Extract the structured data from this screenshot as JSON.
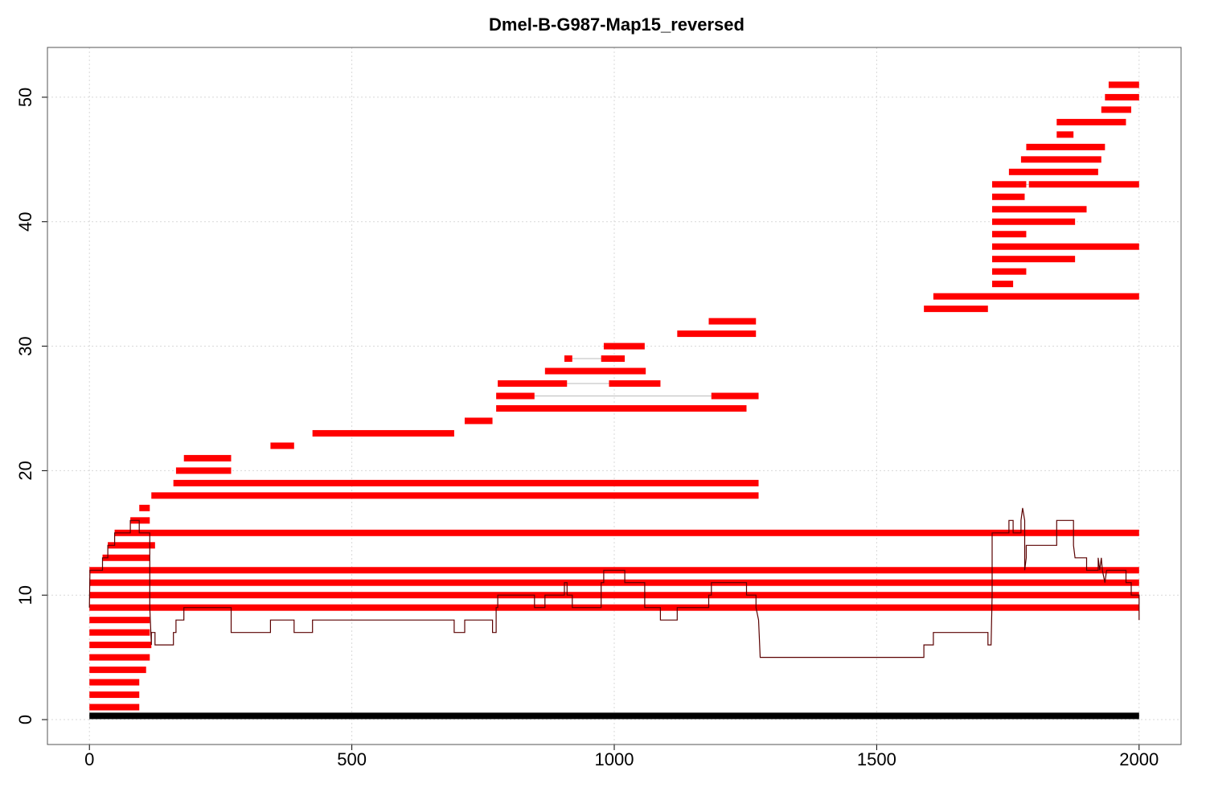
{
  "chart_data": {
    "type": "segment-coverage",
    "title": "Dmel-B-G987-Map15_reversed",
    "xlabel": "",
    "ylabel": "",
    "xlim": [
      -80,
      2080
    ],
    "ylim": [
      -2,
      54
    ],
    "x_ticks": [
      0,
      500,
      1000,
      1500,
      2000
    ],
    "y_ticks": [
      0,
      10,
      20,
      30,
      40,
      50
    ],
    "grid": true,
    "colors": {
      "segments": "#ff0000",
      "reference": "#000000",
      "coverage": "#5a0000",
      "connector": "#bbbbbb"
    },
    "reference": {
      "y": 0.3,
      "x0": 0,
      "x1": 2000
    },
    "segments": [
      {
        "y": 1,
        "pieces": [
          [
            0,
            95
          ]
        ]
      },
      {
        "y": 2,
        "pieces": [
          [
            0,
            95
          ]
        ]
      },
      {
        "y": 3,
        "pieces": [
          [
            0,
            95
          ]
        ]
      },
      {
        "y": 4,
        "pieces": [
          [
            0,
            108
          ]
        ]
      },
      {
        "y": 5,
        "pieces": [
          [
            0,
            115
          ]
        ]
      },
      {
        "y": 6,
        "pieces": [
          [
            0,
            118
          ]
        ]
      },
      {
        "y": 7,
        "pieces": [
          [
            0,
            115
          ]
        ]
      },
      {
        "y": 8,
        "pieces": [
          [
            0,
            115
          ]
        ]
      },
      {
        "y": 9,
        "pieces": [
          [
            0,
            2000
          ]
        ]
      },
      {
        "y": 10,
        "pieces": [
          [
            0,
            2000
          ]
        ]
      },
      {
        "y": 11,
        "pieces": [
          [
            0,
            2000
          ]
        ]
      },
      {
        "y": 12,
        "pieces": [
          [
            0,
            2000
          ]
        ]
      },
      {
        "y": 13,
        "pieces": [
          [
            25,
            115
          ]
        ]
      },
      {
        "y": 14,
        "pieces": [
          [
            35,
            125
          ]
        ]
      },
      {
        "y": 15,
        "pieces": [
          [
            48,
            2000
          ]
        ]
      },
      {
        "y": 16,
        "pieces": [
          [
            78,
            115
          ]
        ]
      },
      {
        "y": 17,
        "pieces": [
          [
            95,
            115
          ]
        ]
      },
      {
        "y": 18,
        "pieces": [
          [
            118,
            1275
          ]
        ]
      },
      {
        "y": 19,
        "pieces": [
          [
            160,
            1275
          ]
        ]
      },
      {
        "y": 20,
        "pieces": [
          [
            165,
            270
          ]
        ]
      },
      {
        "y": 21,
        "pieces": [
          [
            180,
            270
          ]
        ]
      },
      {
        "y": 22,
        "pieces": [
          [
            345,
            390
          ]
        ]
      },
      {
        "y": 23,
        "pieces": [
          [
            425,
            695
          ]
        ]
      },
      {
        "y": 24,
        "pieces": [
          [
            715,
            768
          ]
        ]
      },
      {
        "y": 25,
        "pieces": [
          [
            775,
            1252
          ]
        ]
      },
      {
        "y": 26,
        "pieces": [
          [
            775,
            848
          ],
          [
            1185,
            1275
          ]
        ]
      },
      {
        "y": 27,
        "pieces": [
          [
            778,
            910
          ],
          [
            990,
            1088
          ]
        ]
      },
      {
        "y": 28,
        "pieces": [
          [
            868,
            1060
          ]
        ]
      },
      {
        "y": 29,
        "pieces": [
          [
            905,
            920
          ],
          [
            975,
            1020
          ]
        ]
      },
      {
        "y": 30,
        "pieces": [
          [
            980,
            1058
          ]
        ]
      },
      {
        "y": 31,
        "pieces": [
          [
            1120,
            1270
          ]
        ]
      },
      {
        "y": 32,
        "pieces": [
          [
            1180,
            1270
          ]
        ]
      },
      {
        "y": 33,
        "pieces": [
          [
            1590,
            1712
          ]
        ]
      },
      {
        "y": 34,
        "pieces": [
          [
            1608,
            2000
          ]
        ]
      },
      {
        "y": 35,
        "pieces": [
          [
            1720,
            1760
          ]
        ]
      },
      {
        "y": 36,
        "pieces": [
          [
            1720,
            1785
          ]
        ]
      },
      {
        "y": 37,
        "pieces": [
          [
            1720,
            1878
          ]
        ]
      },
      {
        "y": 38,
        "pieces": [
          [
            1720,
            2000
          ]
        ]
      },
      {
        "y": 39,
        "pieces": [
          [
            1720,
            1785
          ]
        ]
      },
      {
        "y": 40,
        "pieces": [
          [
            1720,
            1878
          ]
        ]
      },
      {
        "y": 41,
        "pieces": [
          [
            1720,
            1900
          ]
        ]
      },
      {
        "y": 42,
        "pieces": [
          [
            1720,
            1782
          ]
        ]
      },
      {
        "y": 43,
        "pieces": [
          [
            1720,
            1785
          ],
          [
            1790,
            2000
          ]
        ]
      },
      {
        "y": 44,
        "pieces": [
          [
            1752,
            1922
          ]
        ]
      },
      {
        "y": 45,
        "pieces": [
          [
            1775,
            1928
          ]
        ]
      },
      {
        "y": 46,
        "pieces": [
          [
            1785,
            1935
          ]
        ]
      },
      {
        "y": 47,
        "pieces": [
          [
            1843,
            1875
          ]
        ]
      },
      {
        "y": 48,
        "pieces": [
          [
            1843,
            1975
          ]
        ]
      },
      {
        "y": 49,
        "pieces": [
          [
            1928,
            1985
          ]
        ]
      },
      {
        "y": 50,
        "pieces": [
          [
            1935,
            2000
          ]
        ]
      },
      {
        "y": 51,
        "pieces": [
          [
            1942,
            2000
          ]
        ]
      }
    ],
    "coverage": [
      [
        0,
        9
      ],
      [
        1,
        12
      ],
      [
        25,
        12
      ],
      [
        25,
        13
      ],
      [
        35,
        13
      ],
      [
        35,
        14
      ],
      [
        48,
        14
      ],
      [
        48,
        15
      ],
      [
        78,
        15
      ],
      [
        78,
        16
      ],
      [
        95,
        16
      ],
      [
        95,
        15
      ],
      [
        115,
        15
      ],
      [
        115,
        9
      ],
      [
        118,
        6
      ],
      [
        118,
        7
      ],
      [
        125,
        7
      ],
      [
        125,
        6
      ],
      [
        160,
        6
      ],
      [
        160,
        7
      ],
      [
        165,
        7
      ],
      [
        165,
        8
      ],
      [
        180,
        8
      ],
      [
        180,
        9
      ],
      [
        270,
        9
      ],
      [
        270,
        7
      ],
      [
        345,
        7
      ],
      [
        345,
        8
      ],
      [
        390,
        8
      ],
      [
        390,
        7
      ],
      [
        425,
        7
      ],
      [
        425,
        8
      ],
      [
        695,
        8
      ],
      [
        695,
        7
      ],
      [
        715,
        7
      ],
      [
        715,
        8
      ],
      [
        768,
        8
      ],
      [
        768,
        7
      ],
      [
        775,
        7
      ],
      [
        775,
        9
      ],
      [
        778,
        9
      ],
      [
        778,
        10
      ],
      [
        848,
        10
      ],
      [
        848,
        9
      ],
      [
        868,
        9
      ],
      [
        868,
        10
      ],
      [
        905,
        10
      ],
      [
        905,
        11
      ],
      [
        910,
        11
      ],
      [
        910,
        10
      ],
      [
        920,
        10
      ],
      [
        920,
        9
      ],
      [
        975,
        9
      ],
      [
        975,
        11
      ],
      [
        980,
        11
      ],
      [
        980,
        12
      ],
      [
        1020,
        12
      ],
      [
        1020,
        11
      ],
      [
        1058,
        11
      ],
      [
        1058,
        9
      ],
      [
        1088,
        9
      ],
      [
        1088,
        8
      ],
      [
        1120,
        8
      ],
      [
        1120,
        9
      ],
      [
        1180,
        9
      ],
      [
        1180,
        10
      ],
      [
        1185,
        10
      ],
      [
        1185,
        11
      ],
      [
        1252,
        11
      ],
      [
        1252,
        10
      ],
      [
        1270,
        10
      ],
      [
        1270,
        9
      ],
      [
        1275,
        8
      ],
      [
        1278,
        5
      ],
      [
        1590,
        5
      ],
      [
        1590,
        6
      ],
      [
        1608,
        6
      ],
      [
        1608,
        7
      ],
      [
        1712,
        7
      ],
      [
        1712,
        6
      ],
      [
        1718,
        6
      ],
      [
        1720,
        10
      ],
      [
        1720,
        15
      ],
      [
        1752,
        15
      ],
      [
        1752,
        16
      ],
      [
        1760,
        16
      ],
      [
        1760,
        15
      ],
      [
        1775,
        15
      ],
      [
        1775,
        16
      ],
      [
        1778,
        17
      ],
      [
        1782,
        16
      ],
      [
        1782,
        12
      ],
      [
        1785,
        13
      ],
      [
        1785,
        14
      ],
      [
        1843,
        14
      ],
      [
        1843,
        16
      ],
      [
        1875,
        16
      ],
      [
        1875,
        14
      ],
      [
        1878,
        13
      ],
      [
        1900,
        13
      ],
      [
        1900,
        12
      ],
      [
        1922,
        12
      ],
      [
        1922,
        13
      ],
      [
        1925,
        12
      ],
      [
        1928,
        13
      ],
      [
        1930,
        12
      ],
      [
        1935,
        11
      ],
      [
        1938,
        12
      ],
      [
        1975,
        12
      ],
      [
        1975,
        11
      ],
      [
        1985,
        11
      ],
      [
        1985,
        10
      ],
      [
        2000,
        10
      ],
      [
        2000,
        8
      ]
    ]
  }
}
